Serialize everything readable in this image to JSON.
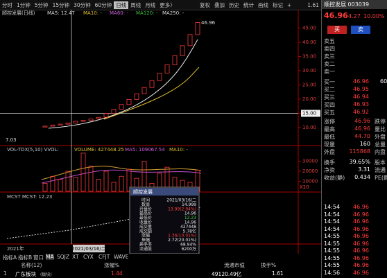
{
  "toolbar": {
    "periods": [
      "分时",
      "1分钟",
      "5分钟",
      "15分钟",
      "30分钟",
      "60分钟",
      "日线",
      "周线",
      "月线",
      "更多〉"
    ],
    "active": "日线",
    "tools": [
      "复权",
      "叠加",
      "历史",
      "统计",
      "画线",
      "标记",
      "+"
    ],
    "value": "1.61"
  },
  "chart": {
    "title": "顺控发展(日线)",
    "ma_labels": [
      "MA5: 12.47",
      "MA10: -",
      "MA60: -",
      "MA120: -",
      "MA250: -"
    ],
    "high_label": "46.96",
    "low_label": "7.03",
    "closes": [
      10.5,
      10.9,
      11.2,
      11.6,
      12.2,
      12.5,
      13.0,
      13.6,
      14.96,
      16.46,
      18.1,
      19.91,
      21.9,
      24.1,
      26.51,
      29.16,
      32.07,
      35.28,
      38.81,
      42.69,
      46.96
    ],
    "ylim": [
      4.63,
      51.46
    ],
    "yticks": [
      {
        "value": 45,
        "label": "45.00"
      },
      {
        "value": 40,
        "label": "40.00"
      },
      {
        "value": 35,
        "label": "35.00"
      },
      {
        "value": 30,
        "label": "30.00"
      },
      {
        "value": 25,
        "label": "25.00"
      },
      {
        "value": 20,
        "label": "20.00"
      },
      {
        "value": 15,
        "label": "15.00"
      },
      {
        "value": 10,
        "label": "10.00"
      }
    ],
    "crosshair_price": 15,
    "volume_legend": [
      "VOL-TDX(5,10) VVOL:",
      "VOLUME: 427448.25",
      "MA5: 109067.54",
      "MA10: -"
    ],
    "volumes": [
      8000,
      15000,
      12000,
      20000,
      14000,
      38000,
      25000,
      12000,
      20000,
      9000,
      15000,
      22000,
      13000,
      30000,
      8000,
      18000,
      24000,
      14000,
      11000,
      9000,
      21000
    ],
    "vlim": [
      0,
      40000
    ],
    "vticks": [
      30000,
      20000,
      10000
    ],
    "vunit": "X10",
    "mcst_label": "MCST MCST: 12.23",
    "dates": [
      "2021年",
      "2021/03/16/二"
    ]
  },
  "tooltip": {
    "title": "顺控发展",
    "rows": [
      [
        "时间",
        "2021/03/16/二"
      ],
      [
        "数值",
        "14.999"
      ],
      [
        "开盘价",
        "13.99(2.94%)"
      ],
      [
        "最高价",
        "14.96"
      ],
      [
        "最低价",
        "12.23"
      ],
      [
        "收盘价",
        "14.96"
      ],
      [
        "成交量",
        "427448"
      ],
      [
        "成交额",
        "5.78亿"
      ],
      [
        "涨幅",
        "1.36(10.01%)"
      ],
      [
        "振幅",
        "2.72(20.01%)"
      ],
      [
        "换手率",
        "68.94%"
      ],
      [
        "流通股",
        "6200万"
      ]
    ]
  },
  "quote": {
    "name": "顺控发展 003039",
    "price": "46.96",
    "change": "4.27",
    "pct": "10.00%",
    "buy": "买",
    "sell": "卖",
    "asks": [
      "卖五",
      "卖四",
      "卖三",
      "卖二",
      "卖一"
    ],
    "bids": [
      [
        "买一",
        "46.96",
        "60"
      ],
      [
        "买二",
        "46.95",
        ""
      ],
      [
        "买三",
        "46.94",
        ""
      ],
      [
        "买四",
        "46.93",
        ""
      ],
      [
        "买五",
        "46.92",
        ""
      ]
    ],
    "stats": [
      [
        "涨停",
        "46.96",
        "跌停"
      ],
      [
        "最高",
        "46.96",
        "量比"
      ],
      [
        "最低",
        "44.70",
        "外盘"
      ],
      [
        "现量",
        "160",
        "总量"
      ],
      [
        "外盘",
        "115868",
        "内盘"
      ]
    ],
    "stats2": [
      [
        "换手",
        "39.65%",
        "股本"
      ],
      [
        "净资",
        "3.31",
        "流通"
      ],
      [
        "收益(静)",
        "0.434",
        "PE(静"
      ]
    ],
    "ticks": [
      [
        "14:54",
        "46.96"
      ],
      [
        "14:54",
        "46.96"
      ],
      [
        "14:54",
        "46.96"
      ],
      [
        "14:54",
        "46.96"
      ],
      [
        "14:55",
        "46.96"
      ],
      [
        "14:55",
        "46.96"
      ],
      [
        "14:55",
        "46.96"
      ],
      [
        "14:55",
        "46.96"
      ],
      [
        "14:55",
        "46.96"
      ],
      [
        "14:56",
        "46.96"
      ]
    ]
  },
  "bottom": {
    "tabs": [
      "指标A",
      "指标B",
      "窗口",
      "MA",
      "SQJZ",
      "XT",
      "CYX",
      "CFJT",
      "WAVE"
    ],
    "headers": [
      "名称(12)",
      "涨幅%",
      "流通市值",
      "换手%"
    ],
    "row": [
      "1",
      "广东板块",
      "(板块)",
      "1.44",
      "49120.49亿",
      "1.61"
    ]
  }
}
